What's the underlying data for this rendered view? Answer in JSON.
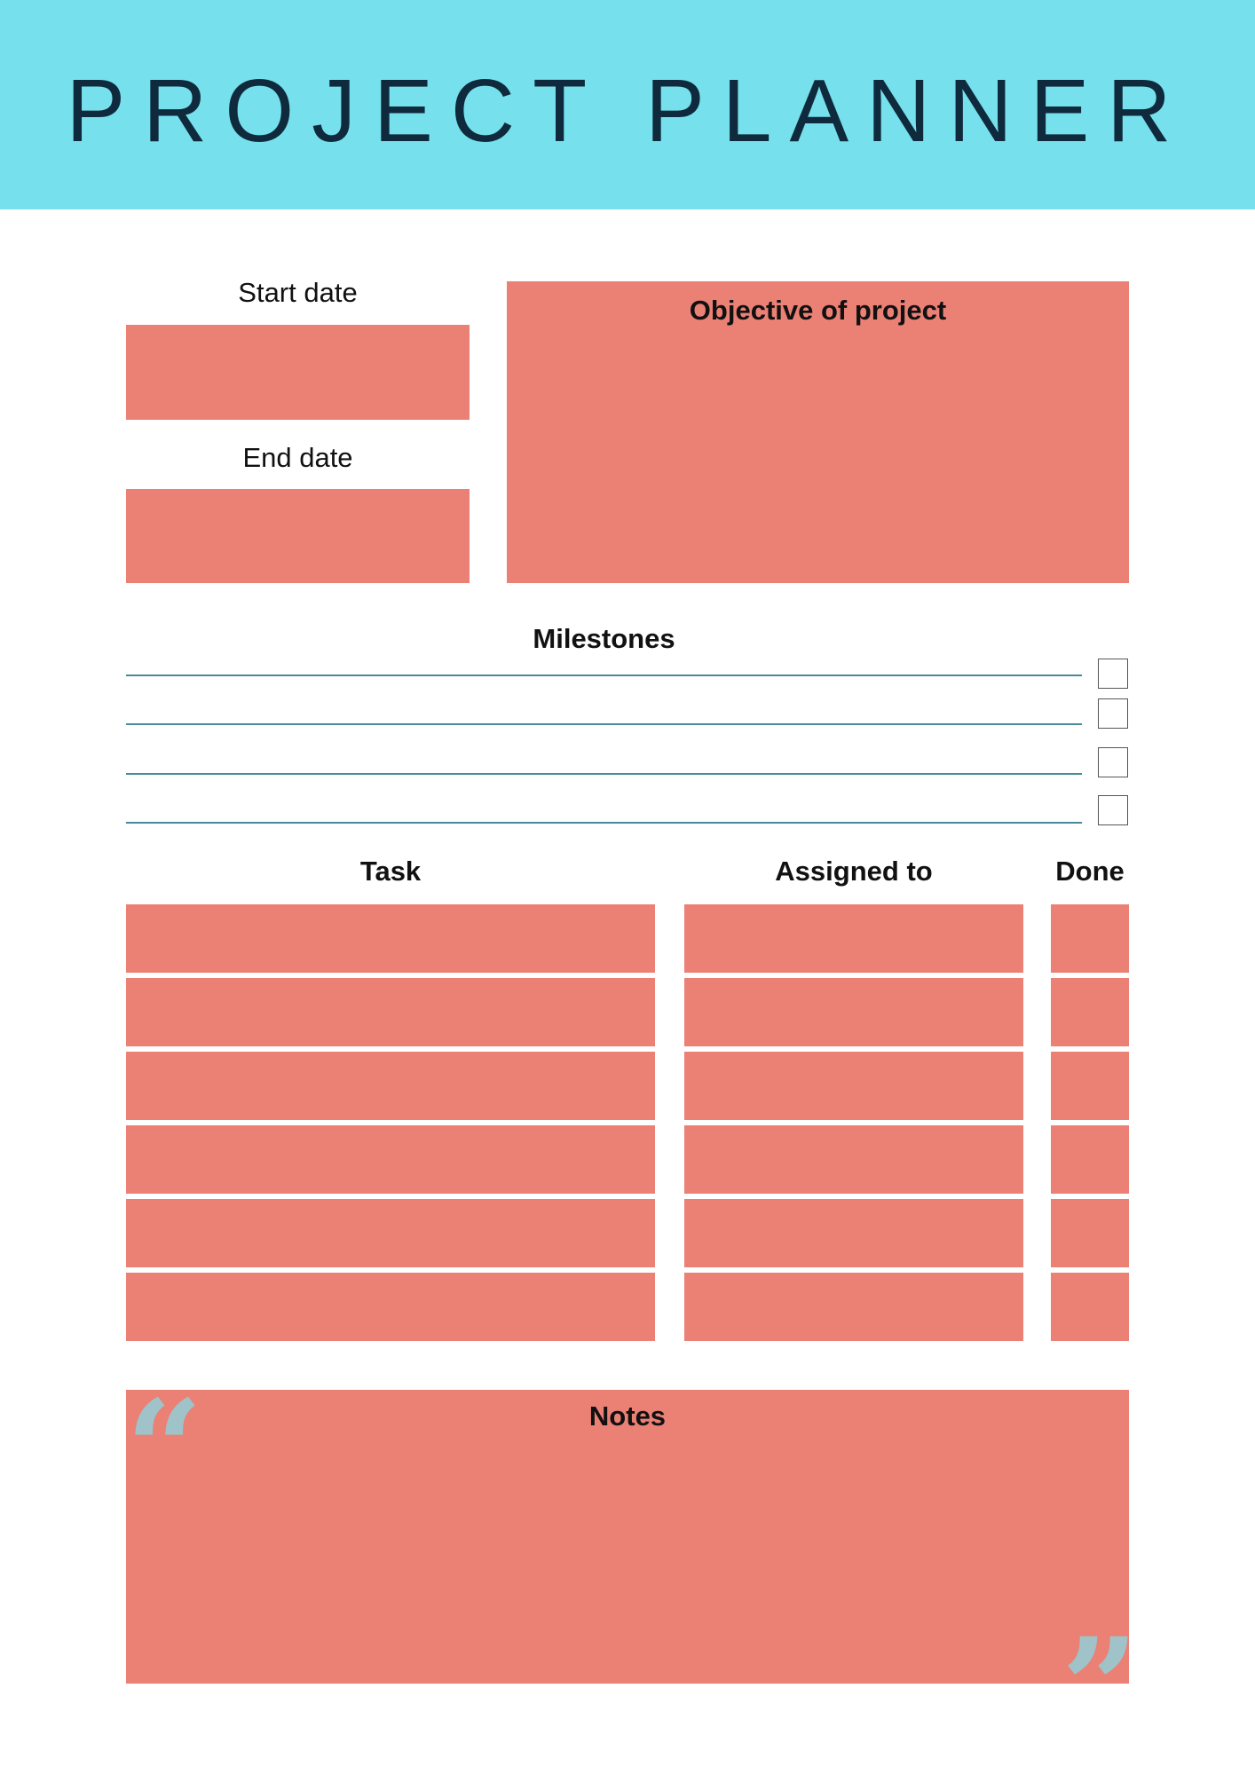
{
  "header": {
    "title": "PROJECT PLANNER",
    "background_color": "#76e1ec",
    "title_color": "#0f2a3d"
  },
  "dates": {
    "start_label": "Start date",
    "end_label": "End date"
  },
  "objective": {
    "label": "Objective of project"
  },
  "milestones": {
    "label": "Milestones",
    "items": [
      {
        "checked": false
      },
      {
        "checked": false
      },
      {
        "checked": false
      },
      {
        "checked": false
      }
    ]
  },
  "tasks": {
    "columns": [
      "Task",
      "Assigned to",
      "Done"
    ],
    "row_count": 6
  },
  "notes": {
    "label": "Notes",
    "open_quote_icon": "open-quote-icon",
    "close_quote_icon": "close-quote-icon"
  },
  "colors": {
    "field": "#eb8075",
    "line": "#4a8a9a",
    "quote": "#9fc3c8"
  }
}
